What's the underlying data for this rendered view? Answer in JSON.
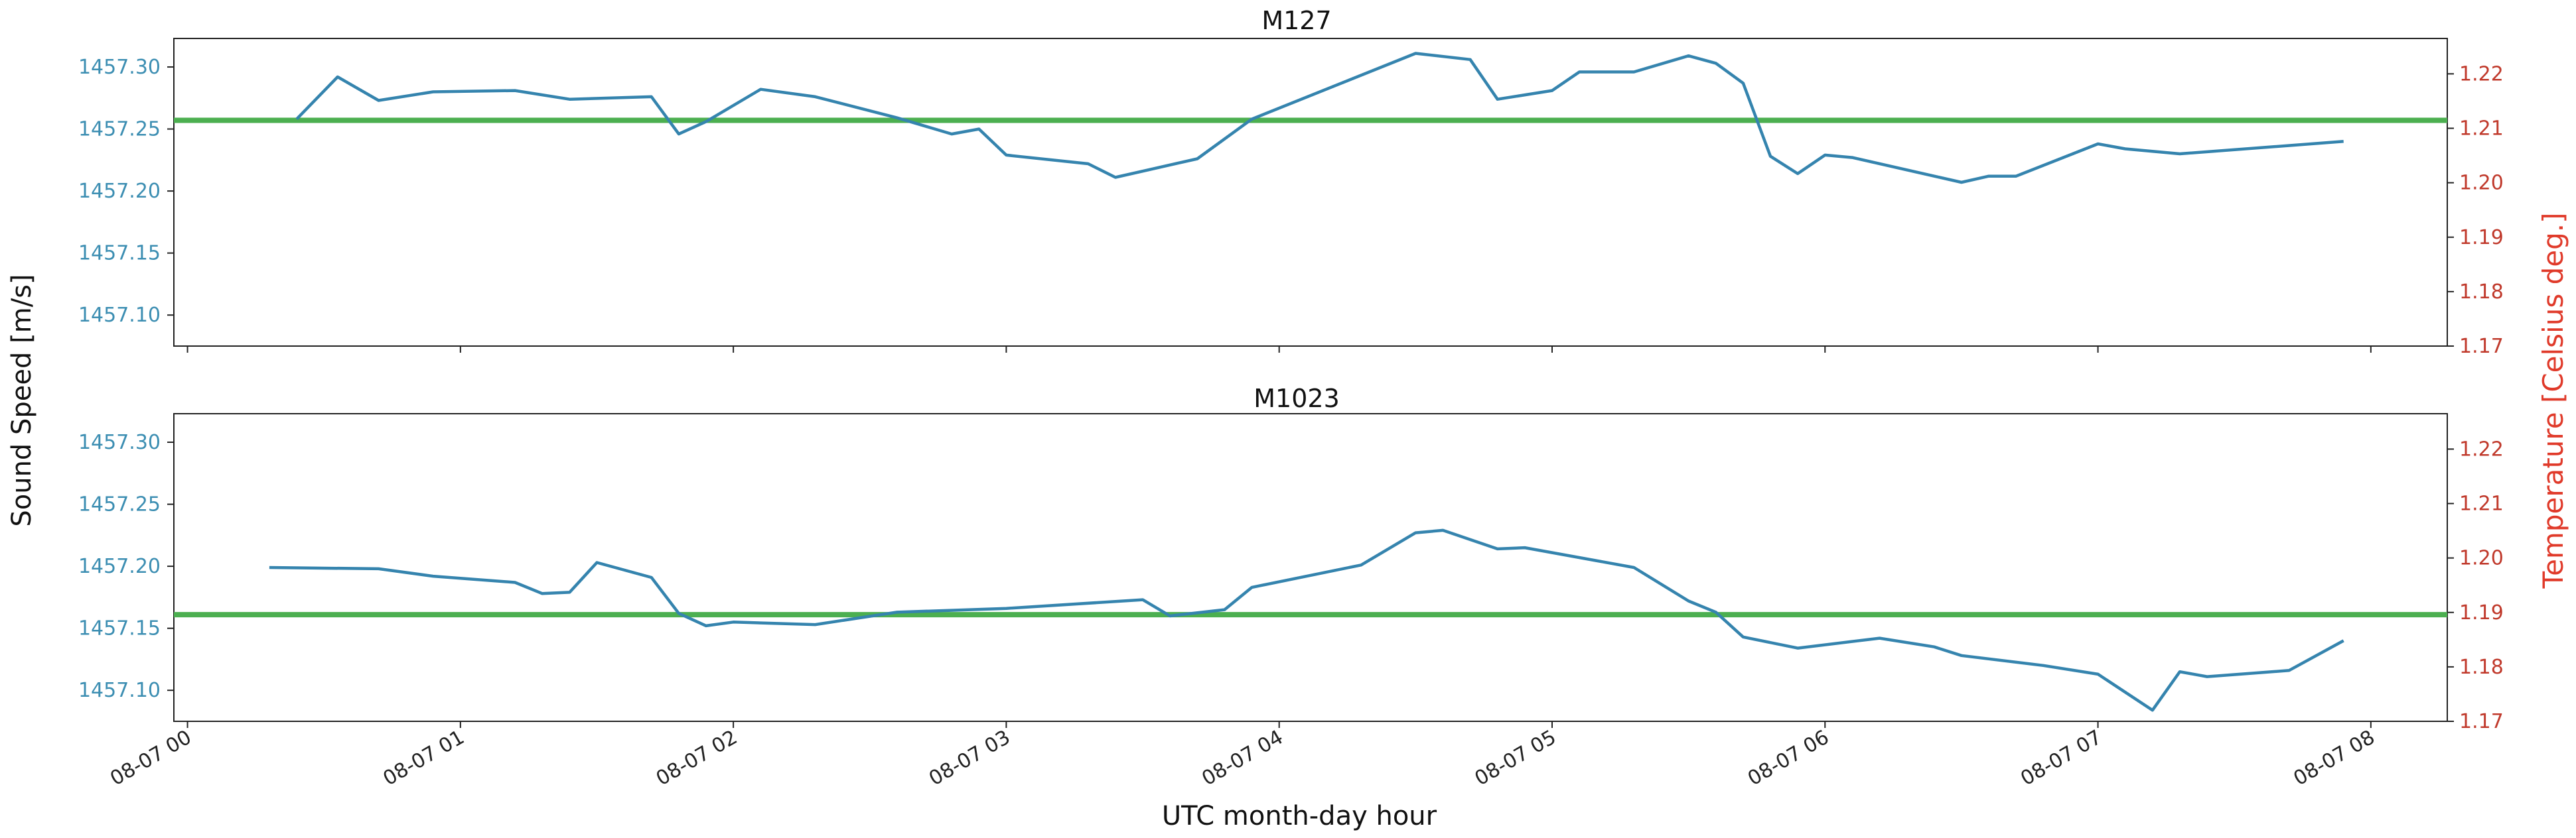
{
  "chart_data": [
    {
      "type": "line",
      "title": "M127",
      "ylabel": "Sound Speed [m/s]",
      "y2label": "Temperature [Celsius deg.]",
      "xlabel": "UTC  month-day hour",
      "x_ticks": [
        "08-07 00",
        "08-07 01",
        "08-07 02",
        "08-07 03",
        "08-07 04",
        "08-07 05",
        "08-07 06",
        "08-07 07",
        "08-07 08"
      ],
      "y_ticks": [
        "1457.10",
        "1457.15",
        "1457.20",
        "1457.25",
        "1457.30"
      ],
      "y2_ticks": [
        "1.17",
        "1.18",
        "1.19",
        "1.20",
        "1.21",
        "1.22"
      ],
      "xlim": [
        -0.05,
        8.28
      ],
      "ylim": [
        1457.075,
        1457.323
      ],
      "y2lim": [
        1.17,
        1.2265
      ],
      "colors": {
        "series": "#3584ae",
        "reference": "#4caf50",
        "left_axis": "#3c8eb2",
        "right_axis": "#c0392b"
      },
      "reference_line": 1457.257,
      "series": [
        {
          "x": [
            "08-07 00:24",
            "08-07 00:33",
            "08-07 00:42",
            "08-07 00:54",
            "08-07 01:12",
            "08-07 01:24",
            "08-07 01:42",
            "08-07 01:48",
            "08-07 01:54",
            "08-07 02:06",
            "08-07 02:18",
            "08-07 02:36",
            "08-07 02:48",
            "08-07 02:54",
            "08-07 03:00",
            "08-07 03:18",
            "08-07 03:24",
            "08-07 03:42",
            "08-07 03:54",
            "08-07 04:30",
            "08-07 04:42",
            "08-07 04:48",
            "08-07 05:00",
            "08-07 05:06",
            "08-07 05:12",
            "08-07 05:18",
            "08-07 05:30",
            "08-07 05:36",
            "08-07 05:42",
            "08-07 05:48",
            "08-07 05:54",
            "08-07 06:00",
            "08-07 06:06",
            "08-07 06:30",
            "08-07 06:36",
            "08-07 06:42",
            "08-07 07:00",
            "08-07 07:06",
            "08-07 07:18",
            "08-07 07:54"
          ],
          "values": [
            1457.258,
            1457.292,
            1457.273,
            1457.28,
            1457.281,
            1457.274,
            1457.276,
            1457.246,
            1457.256,
            1457.282,
            1457.276,
            1457.259,
            1457.246,
            1457.25,
            1457.229,
            1457.222,
            1457.211,
            1457.226,
            1457.258,
            1457.311,
            1457.306,
            1457.274,
            1457.281,
            1457.296,
            1457.296,
            1457.296,
            1457.309,
            1457.303,
            1457.287,
            1457.228,
            1457.214,
            1457.229,
            1457.227,
            1457.207,
            1457.212,
            1457.212,
            1457.238,
            1457.234,
            1457.23,
            1457.24
          ]
        }
      ]
    },
    {
      "type": "line",
      "title": "M1023",
      "ylabel": "Sound Speed [m/s]",
      "y2label": "Temperature [Celsius deg.]",
      "xlabel": "UTC  month-day hour",
      "x_ticks": [
        "08-07 00",
        "08-07 01",
        "08-07 02",
        "08-07 03",
        "08-07 04",
        "08-07 05",
        "08-07 06",
        "08-07 07",
        "08-07 08"
      ],
      "y_ticks": [
        "1457.10",
        "1457.15",
        "1457.20",
        "1457.25",
        "1457.30"
      ],
      "y2_ticks": [
        "1.17",
        "1.18",
        "1.19",
        "1.20",
        "1.21",
        "1.22"
      ],
      "xlim": [
        -0.05,
        8.28
      ],
      "ylim": [
        1457.075,
        1457.323
      ],
      "y2lim": [
        1.17,
        1.2265
      ],
      "colors": {
        "series": "#3584ae",
        "reference": "#4caf50",
        "left_axis": "#3c8eb2",
        "right_axis": "#c0392b"
      },
      "reference_line": 1457.161,
      "series": [
        {
          "x": [
            "08-07 00:18",
            "08-07 00:42",
            "08-07 00:54",
            "08-07 01:12",
            "08-07 01:18",
            "08-07 01:24",
            "08-07 01:30",
            "08-07 01:42",
            "08-07 01:48",
            "08-07 01:54",
            "08-07 02:00",
            "08-07 02:18",
            "08-07 02:36",
            "08-07 03:00",
            "08-07 03:30",
            "08-07 03:36",
            "08-07 03:48",
            "08-07 03:54",
            "08-07 04:18",
            "08-07 04:30",
            "08-07 04:36",
            "08-07 04:48",
            "08-07 04:54",
            "08-07 05:18",
            "08-07 05:30",
            "08-07 05:36",
            "08-07 05:42",
            "08-07 05:54",
            "08-07 06:12",
            "08-07 06:24",
            "08-07 06:30",
            "08-07 06:48",
            "08-07 07:00",
            "08-07 07:12",
            "08-07 07:18",
            "08-07 07:24",
            "08-07 07:42",
            "08-07 07:54"
          ],
          "values": [
            1457.199,
            1457.198,
            1457.192,
            1457.187,
            1457.178,
            1457.179,
            1457.203,
            1457.191,
            1457.162,
            1457.152,
            1457.155,
            1457.153,
            1457.163,
            1457.166,
            1457.173,
            1457.16,
            1457.165,
            1457.183,
            1457.201,
            1457.227,
            1457.229,
            1457.214,
            1457.215,
            1457.199,
            1457.172,
            1457.163,
            1457.143,
            1457.134,
            1457.142,
            1457.135,
            1457.128,
            1457.12,
            1457.113,
            1457.084,
            1457.115,
            1457.111,
            1457.116,
            1457.14
          ]
        }
      ]
    }
  ]
}
